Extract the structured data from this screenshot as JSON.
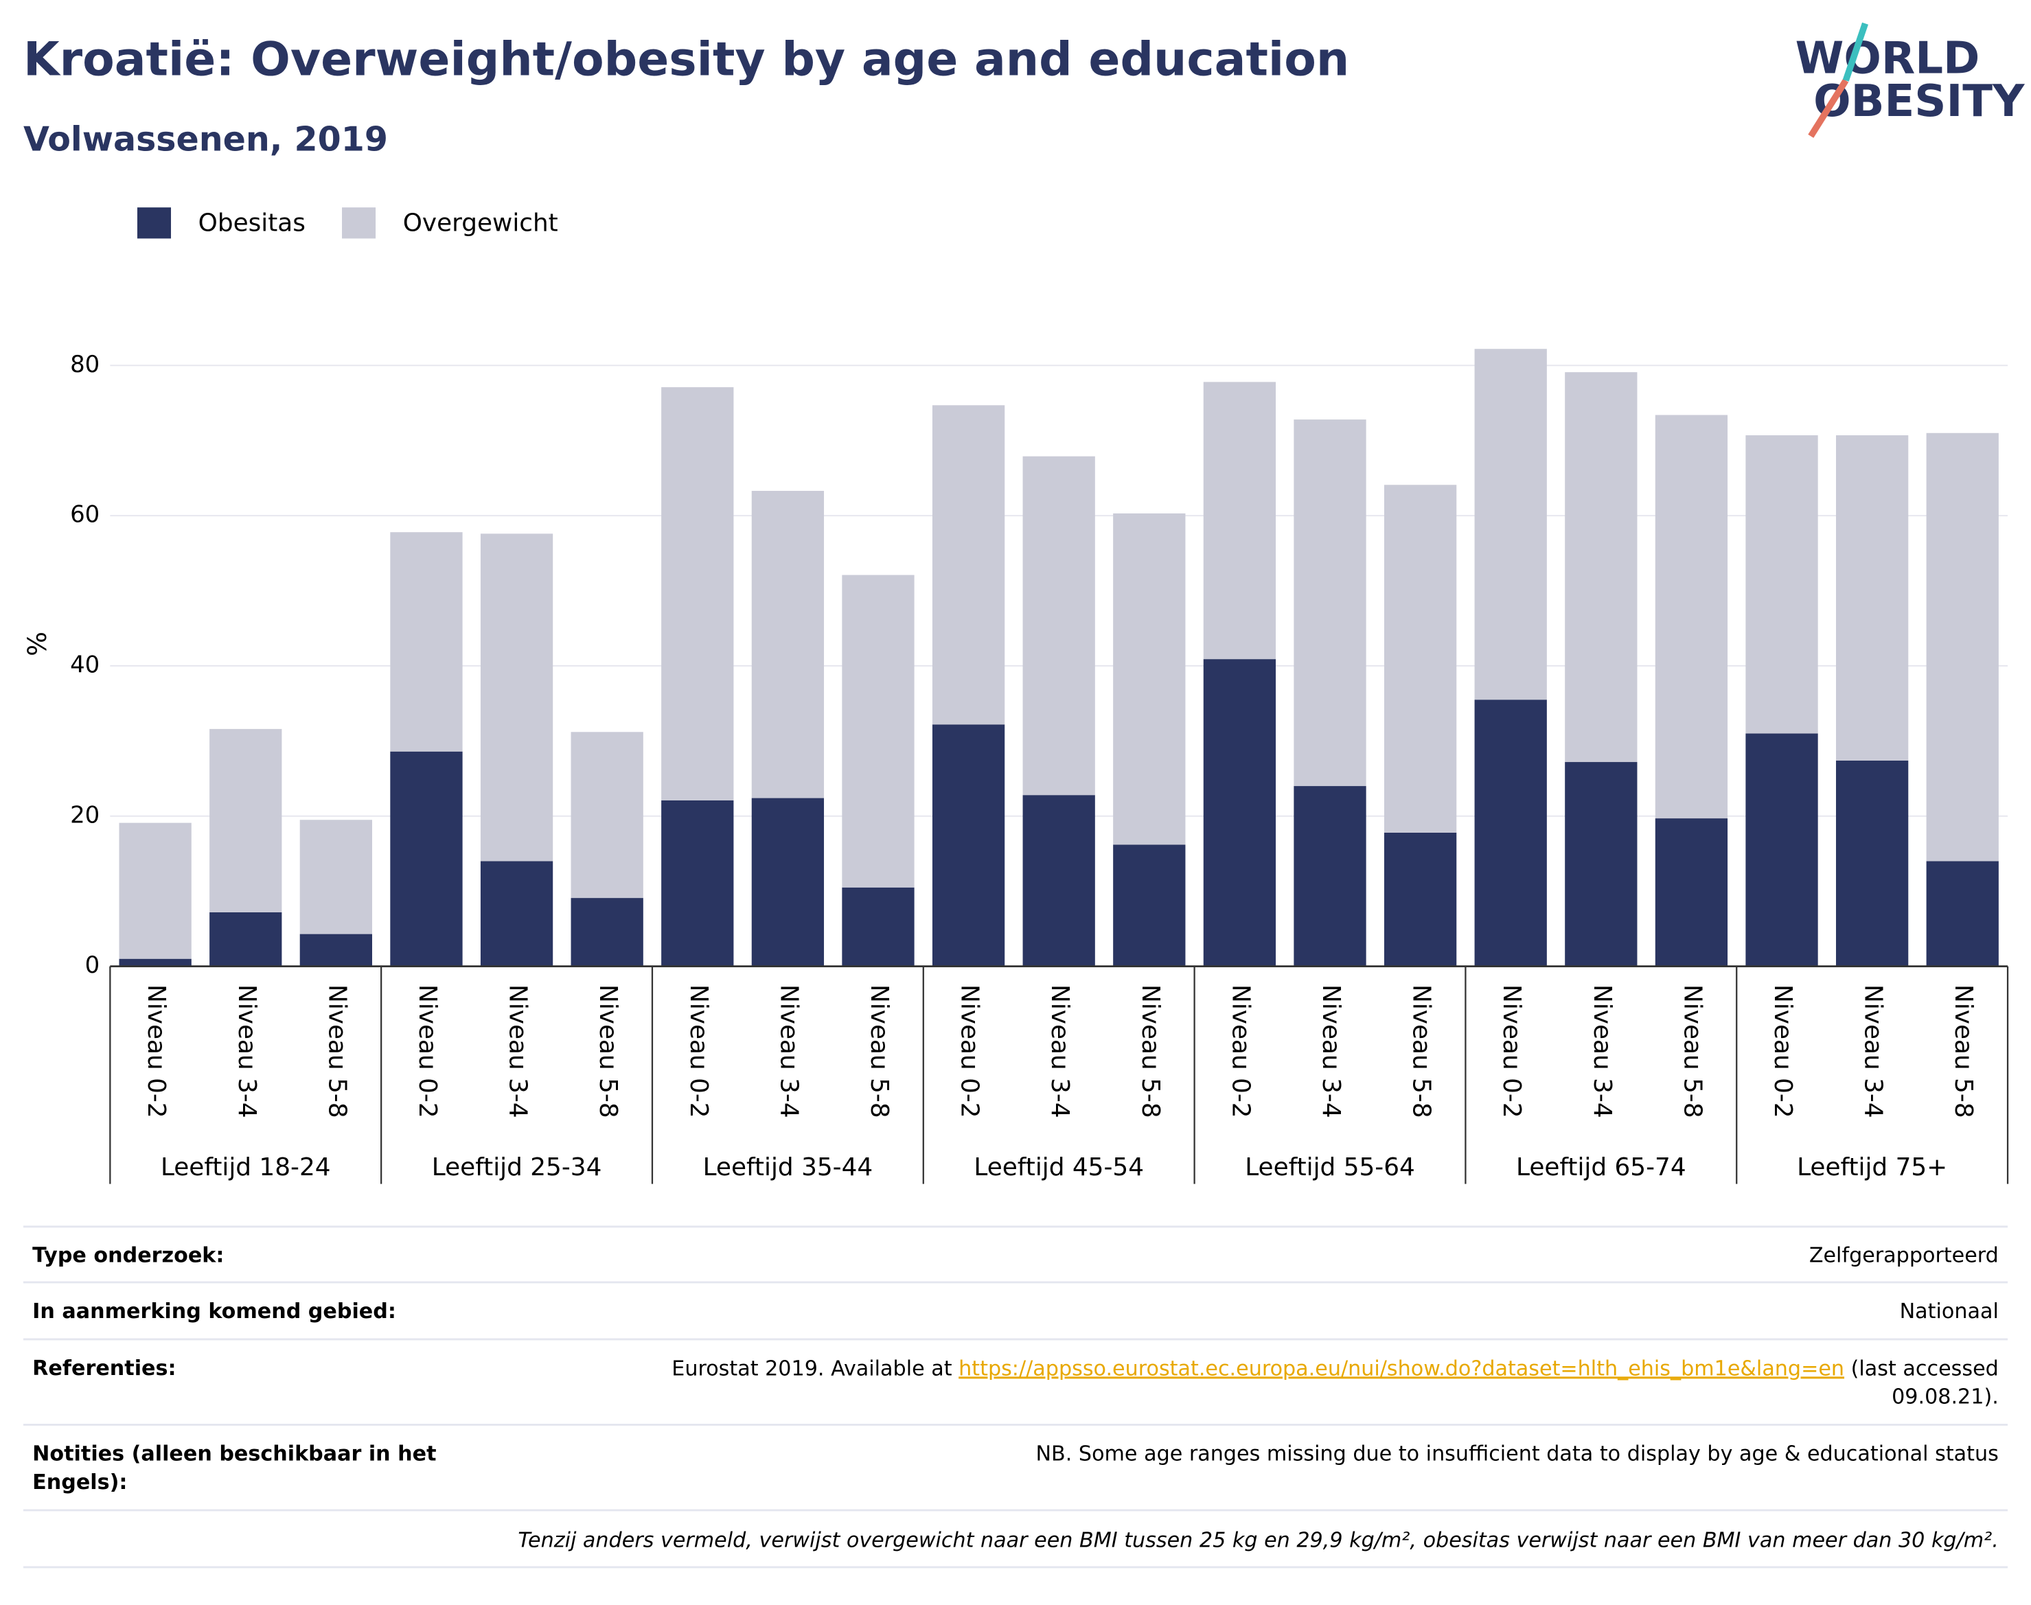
{
  "chart_data": {
    "type": "bar",
    "stacked": true,
    "title": "Kroatië: Overweight/obesity by age and education",
    "subtitle": "Volwassenen, 2019",
    "logo": [
      "WORLD",
      "OBESITY"
    ],
    "y_label": "%",
    "categories": [
      "Niveau 0-2",
      "Niveau 3-4",
      "Niveau 5-8",
      "Niveau 0-2",
      "Niveau 3-4",
      "Niveau 5-8",
      "Niveau 0-2",
      "Niveau 3-4",
      "Niveau 5-8",
      "Niveau 0-2",
      "Niveau 3-4",
      "Niveau 5-8",
      "Niveau 0-2",
      "Niveau 3-4",
      "Niveau 5-8",
      "Niveau 0-2",
      "Niveau 3-4",
      "Niveau 5-8",
      "Niveau 0-2",
      "Niveau 3-4",
      "Niveau 5-8"
    ],
    "groups": [
      "Leeftijd 18-24",
      "Leeftijd 25-34",
      "Leeftijd 35-44",
      "Leeftijd 45-54",
      "Leeftijd 55-64",
      "Leeftijd 65-74",
      "Leeftijd 75+"
    ],
    "series": [
      {
        "name": "Obesitas",
        "color": "#2a3561",
        "values": [
          1.0,
          7.2,
          4.3,
          28.6,
          14.0,
          9.1,
          22.1,
          22.4,
          10.5,
          32.2,
          22.8,
          16.2,
          40.9,
          24.0,
          17.8,
          35.5,
          27.2,
          19.7,
          31.0,
          27.4,
          14.0
        ]
      },
      {
        "name": "Overgewicht",
        "color": "#cacbd7",
        "values": [
          18.1,
          24.4,
          15.2,
          29.2,
          43.6,
          22.1,
          55.0,
          40.9,
          41.6,
          42.5,
          45.1,
          44.1,
          36.9,
          48.8,
          46.3,
          46.7,
          51.9,
          53.7,
          39.7,
          43.3,
          57.0
        ]
      }
    ],
    "ylim": [
      0,
      90
    ],
    "yticks": [
      0,
      20,
      40,
      60,
      80
    ],
    "grid": true,
    "legend": "top-left"
  },
  "table": {
    "rows": [
      {
        "label": [
          "Type onderzoek:"
        ],
        "value": "Zelfgerapporteerd"
      },
      {
        "label": [
          "In aanmerking komend gebied:"
        ],
        "value": "Nationaal"
      },
      {
        "label": [
          "Referenties:"
        ],
        "value_prefix": "Eurostat 2019. Available at ",
        "link": "https://appsso.eurostat.ec.europa.eu/nui/show.do?dataset=hlth_ehis_bm1e&lang=en",
        "value_suffix": [
          " (last accessed",
          "09.08.21)."
        ]
      },
      {
        "label": [
          "Notities (alleen beschikbaar in het",
          "Engels):"
        ],
        "value": "NB. Some age ranges missing due to insufficient data to display by age & educational status"
      }
    ],
    "footnote": "Tenzij anders vermeld, verwijst overgewicht naar een BMI tussen 25 kg en 29,9 kg/m², obesitas verwijst naar een BMI van meer dan 30 kg/m²."
  }
}
